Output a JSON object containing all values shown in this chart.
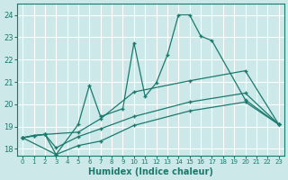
{
  "xlabel": "Humidex (Indice chaleur)",
  "bg_color": "#cce8e8",
  "grid_color": "#ffffff",
  "line_color": "#1a7a6e",
  "xlim": [
    -0.5,
    23.5
  ],
  "ylim": [
    17.7,
    24.5
  ],
  "yticks": [
    18,
    19,
    20,
    21,
    22,
    23,
    24
  ],
  "xticks": [
    0,
    1,
    2,
    3,
    4,
    5,
    6,
    7,
    8,
    9,
    10,
    11,
    12,
    13,
    14,
    15,
    16,
    17,
    18,
    19,
    20,
    21,
    22,
    23
  ],
  "lines": [
    {
      "x": [
        0,
        1,
        2,
        3,
        5,
        7,
        10,
        15,
        20,
        23
      ],
      "y": [
        18.5,
        18.6,
        18.65,
        17.75,
        18.15,
        18.35,
        19.05,
        19.7,
        20.1,
        19.1
      ]
    },
    {
      "x": [
        0,
        1,
        2,
        3,
        5,
        7,
        10,
        15,
        20,
        23
      ],
      "y": [
        18.5,
        18.6,
        18.65,
        18.05,
        18.55,
        18.9,
        19.45,
        20.1,
        20.5,
        19.1
      ]
    },
    {
      "x": [
        0,
        2,
        5,
        7,
        10,
        15,
        20,
        23
      ],
      "y": [
        18.5,
        18.65,
        18.75,
        19.35,
        20.55,
        21.05,
        21.5,
        19.1
      ]
    },
    {
      "x": [
        0,
        3,
        5,
        6,
        7,
        9,
        10,
        11,
        12,
        13,
        14,
        15,
        16,
        17,
        20,
        23
      ],
      "y": [
        18.5,
        17.75,
        19.1,
        20.85,
        19.45,
        19.8,
        22.75,
        20.35,
        20.95,
        22.2,
        24.0,
        24.0,
        23.05,
        22.85,
        20.2,
        19.1
      ]
    }
  ]
}
